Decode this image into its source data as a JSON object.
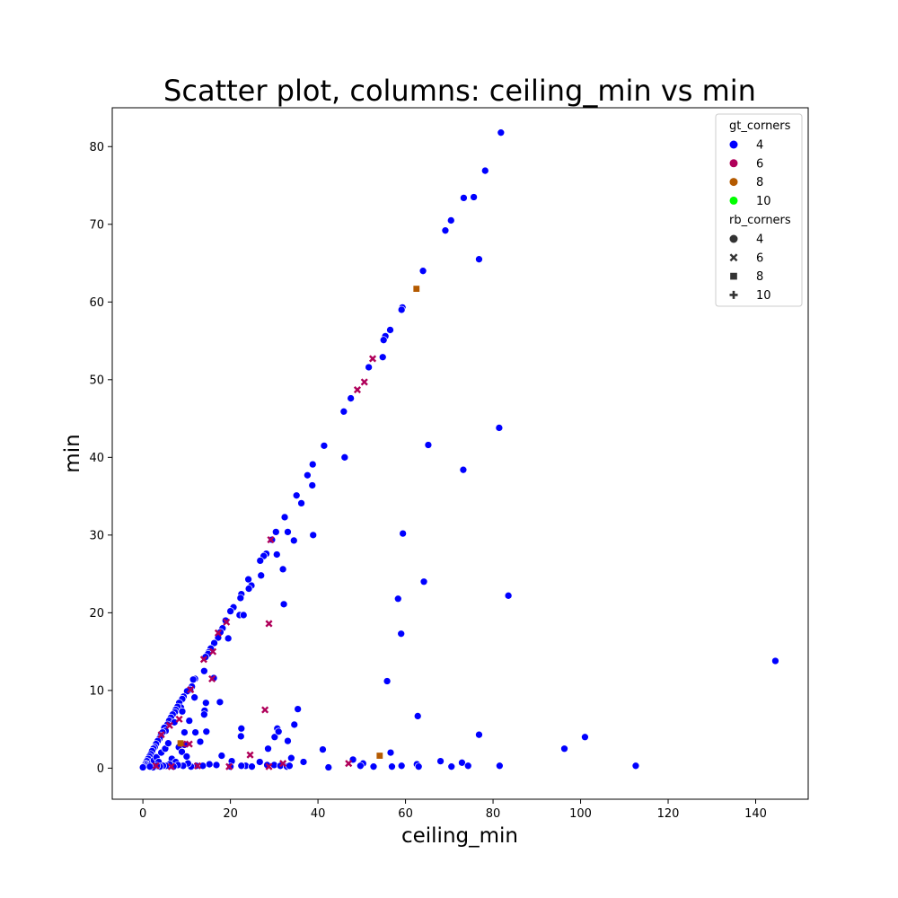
{
  "chart_data": {
    "type": "scatter",
    "title": "Scatter plot, columns: ceiling_min vs min",
    "xlabel": "ceiling_min",
    "ylabel": "min",
    "xlim": [
      -7,
      152
    ],
    "ylim": [
      -4,
      85
    ],
    "xticks": [
      0,
      20,
      40,
      60,
      80,
      100,
      120,
      140
    ],
    "yticks": [
      0,
      10,
      20,
      30,
      40,
      50,
      60,
      70,
      80
    ],
    "grid": false,
    "legend_position": "top-right",
    "legend": {
      "hue_title": "gt_corners",
      "hue_entries": [
        {
          "label": "4",
          "color": "#0000ff"
        },
        {
          "label": "6",
          "color": "#b0005a"
        },
        {
          "label": "8",
          "color": "#b45a00"
        },
        {
          "label": "10",
          "color": "#00ff00"
        }
      ],
      "style_title": "rb_corners",
      "style_entries": [
        {
          "label": "4",
          "marker": "circle"
        },
        {
          "label": "6",
          "marker": "x"
        },
        {
          "label": "8",
          "marker": "square"
        },
        {
          "label": "10",
          "marker": "plus"
        }
      ]
    },
    "series": [
      {
        "gt_corners": "4",
        "rb_corners": "4",
        "color": "#0000ff",
        "marker": "circle",
        "points": [
          [
            81.8,
            81.8
          ],
          [
            78.2,
            76.9
          ],
          [
            73.3,
            73.4
          ],
          [
            75.6,
            73.5
          ],
          [
            70.4,
            70.5
          ],
          [
            69.1,
            69.2
          ],
          [
            76.8,
            65.5
          ],
          [
            64.0,
            64.0
          ],
          [
            59.3,
            59.3
          ],
          [
            59.1,
            59.0
          ],
          [
            56.5,
            56.4
          ],
          [
            55.4,
            55.6
          ],
          [
            55.0,
            55.1
          ],
          [
            54.8,
            52.9
          ],
          [
            51.6,
            51.6
          ],
          [
            47.5,
            47.6
          ],
          [
            45.9,
            45.9
          ],
          [
            81.4,
            43.8
          ],
          [
            41.4,
            41.5
          ],
          [
            65.2,
            41.6
          ],
          [
            46.1,
            40.0
          ],
          [
            38.8,
            39.1
          ],
          [
            73.2,
            38.4
          ],
          [
            37.6,
            37.7
          ],
          [
            38.7,
            36.4
          ],
          [
            35.1,
            35.1
          ],
          [
            36.2,
            34.1
          ],
          [
            32.4,
            32.3
          ],
          [
            30.4,
            30.4
          ],
          [
            33.1,
            30.4
          ],
          [
            38.9,
            30.0
          ],
          [
            59.4,
            30.2
          ],
          [
            34.5,
            29.3
          ],
          [
            29.5,
            29.4
          ],
          [
            30.6,
            27.5
          ],
          [
            28.2,
            27.6
          ],
          [
            27.6,
            27.3
          ],
          [
            26.8,
            26.7
          ],
          [
            32.0,
            25.6
          ],
          [
            24.1,
            24.3
          ],
          [
            27.0,
            24.8
          ],
          [
            64.2,
            24.0
          ],
          [
            24.8,
            23.5
          ],
          [
            24.2,
            23.1
          ],
          [
            22.5,
            22.4
          ],
          [
            22.3,
            21.9
          ],
          [
            58.3,
            21.8
          ],
          [
            83.5,
            22.2
          ],
          [
            32.2,
            21.1
          ],
          [
            20.7,
            20.7
          ],
          [
            20.0,
            20.2
          ],
          [
            22.1,
            19.7
          ],
          [
            23.0,
            19.7
          ],
          [
            18.9,
            19.0
          ],
          [
            18.2,
            18.0
          ],
          [
            17.7,
            17.5
          ],
          [
            17.2,
            16.8
          ],
          [
            19.5,
            16.7
          ],
          [
            16.3,
            16.1
          ],
          [
            15.5,
            15.4
          ],
          [
            15.0,
            14.9
          ],
          [
            14.9,
            14.7
          ],
          [
            14.3,
            14.3
          ],
          [
            59.0,
            17.3
          ],
          [
            14.0,
            12.5
          ],
          [
            16.2,
            11.6
          ],
          [
            11.9,
            11.5
          ],
          [
            11.5,
            11.4
          ],
          [
            55.8,
            11.2
          ],
          [
            11.2,
            10.5
          ],
          [
            10.8,
            10.1
          ],
          [
            10.1,
            9.9
          ],
          [
            9.3,
            9.2
          ],
          [
            9.0,
            8.9
          ],
          [
            11.8,
            9.1
          ],
          [
            8.3,
            8.4
          ],
          [
            17.6,
            8.5
          ],
          [
            14.4,
            8.4
          ],
          [
            8.7,
            7.8
          ],
          [
            7.9,
            7.9
          ],
          [
            7.5,
            7.5
          ],
          [
            9.0,
            7.3
          ],
          [
            7.3,
            7.2
          ],
          [
            14.1,
            7.4
          ],
          [
            35.4,
            7.6
          ],
          [
            6.8,
            6.9
          ],
          [
            6.4,
            6.5
          ],
          [
            14.0,
            6.9
          ],
          [
            62.8,
            6.7
          ],
          [
            6.0,
            6.1
          ],
          [
            5.6,
            5.6
          ],
          [
            7.2,
            5.9
          ],
          [
            4.9,
            5.2
          ],
          [
            10.6,
            6.1
          ],
          [
            34.6,
            5.6
          ],
          [
            5.2,
            4.8
          ],
          [
            4.5,
            4.6
          ],
          [
            4.1,
            4.2
          ],
          [
            3.8,
            3.8
          ],
          [
            22.5,
            5.1
          ],
          [
            30.7,
            5.1
          ],
          [
            22.4,
            4.1
          ],
          [
            9.5,
            4.6
          ],
          [
            12.0,
            4.6
          ],
          [
            14.5,
            4.7
          ],
          [
            76.8,
            4.3
          ],
          [
            101.0,
            4.0
          ],
          [
            3.4,
            3.5
          ],
          [
            3.0,
            3.1
          ],
          [
            2.7,
            2.7
          ],
          [
            2.4,
            2.5
          ],
          [
            2.1,
            2.2
          ],
          [
            1.8,
            1.8
          ],
          [
            1.5,
            1.5
          ],
          [
            1.2,
            1.2
          ],
          [
            0.9,
            0.9
          ],
          [
            0.6,
            0.6
          ],
          [
            0.3,
            0.3
          ],
          [
            0.2,
            0.2
          ],
          [
            0.5,
            0.4
          ],
          [
            1.0,
            0.5
          ],
          [
            1.4,
            0.4
          ],
          [
            2.0,
            0.6
          ],
          [
            2.5,
            1.0
          ],
          [
            3.1,
            1.4
          ],
          [
            3.6,
            0.8
          ],
          [
            4.2,
            2.0
          ],
          [
            5.1,
            2.5
          ],
          [
            5.8,
            3.2
          ],
          [
            6.6,
            1.2
          ],
          [
            7.5,
            0.8
          ],
          [
            8.2,
            2.7
          ],
          [
            8.9,
            2.1
          ],
          [
            9.5,
            3.0
          ],
          [
            10.0,
            1.5
          ],
          [
            13.1,
            3.4
          ],
          [
            30.1,
            4.0
          ],
          [
            31.0,
            4.7
          ],
          [
            33.1,
            3.5
          ],
          [
            28.6,
            2.5
          ],
          [
            18.0,
            1.6
          ],
          [
            20.3,
            0.9
          ],
          [
            26.7,
            0.8
          ],
          [
            30.0,
            0.4
          ],
          [
            33.9,
            1.3
          ],
          [
            36.7,
            0.8
          ],
          [
            41.1,
            2.4
          ],
          [
            48.0,
            1.1
          ],
          [
            50.3,
            0.6
          ],
          [
            56.6,
            2.0
          ],
          [
            62.6,
            0.5
          ],
          [
            68.0,
            0.9
          ],
          [
            72.9,
            0.7
          ],
          [
            81.5,
            0.3
          ],
          [
            96.3,
            2.5
          ],
          [
            112.6,
            0.3
          ],
          [
            144.5,
            13.8
          ],
          [
            42.4,
            0.1
          ],
          [
            49.7,
            0.3
          ],
          [
            52.7,
            0.2
          ],
          [
            56.9,
            0.2
          ],
          [
            59.1,
            0.3
          ],
          [
            63.0,
            0.2
          ],
          [
            70.5,
            0.2
          ],
          [
            74.3,
            0.3
          ],
          [
            28.4,
            0.4
          ],
          [
            31.4,
            0.3
          ],
          [
            32.9,
            0.2
          ],
          [
            33.5,
            0.3
          ],
          [
            23.5,
            0.3
          ],
          [
            24.9,
            0.2
          ],
          [
            22.5,
            0.3
          ],
          [
            20.0,
            0.2
          ],
          [
            16.8,
            0.4
          ],
          [
            15.2,
            0.5
          ],
          [
            13.7,
            0.3
          ],
          [
            12.2,
            0.3
          ],
          [
            11.0,
            0.2
          ],
          [
            10.3,
            0.6
          ],
          [
            9.2,
            0.3
          ],
          [
            8.0,
            0.4
          ],
          [
            7.0,
            0.2
          ],
          [
            6.1,
            0.5
          ],
          [
            5.3,
            0.3
          ],
          [
            4.6,
            0.3
          ],
          [
            3.9,
            0.2
          ],
          [
            3.2,
            0.3
          ],
          [
            2.3,
            0.1
          ],
          [
            1.6,
            0.2
          ],
          [
            0.0,
            0.1
          ]
        ]
      },
      {
        "gt_corners": "6",
        "rb_corners": "6",
        "color": "#b0005a",
        "marker": "x",
        "points": [
          [
            52.5,
            52.7
          ],
          [
            50.6,
            49.7
          ],
          [
            49.0,
            48.7
          ],
          [
            29.2,
            29.4
          ],
          [
            28.8,
            18.6
          ],
          [
            19.1,
            18.8
          ],
          [
            17.2,
            17.4
          ],
          [
            16.0,
            15.0
          ],
          [
            13.9,
            14.0
          ],
          [
            15.8,
            11.5
          ],
          [
            10.9,
            10.1
          ],
          [
            8.3,
            6.3
          ],
          [
            6.1,
            5.5
          ],
          [
            4.2,
            4.3
          ],
          [
            27.9,
            7.5
          ],
          [
            10.6,
            3.1
          ],
          [
            9.1,
            3.1
          ],
          [
            24.5,
            1.7
          ],
          [
            47.0,
            0.6
          ],
          [
            32.0,
            0.6
          ],
          [
            28.8,
            0.2
          ],
          [
            19.7,
            0.2
          ],
          [
            12.5,
            0.3
          ],
          [
            6.5,
            0.2
          ],
          [
            3.0,
            0.3
          ]
        ]
      },
      {
        "gt_corners": "8",
        "rb_corners": "8",
        "color": "#b45a00",
        "marker": "square",
        "points": [
          [
            62.5,
            61.7
          ],
          [
            54.1,
            1.6
          ],
          [
            8.6,
            3.2
          ]
        ]
      }
    ]
  }
}
